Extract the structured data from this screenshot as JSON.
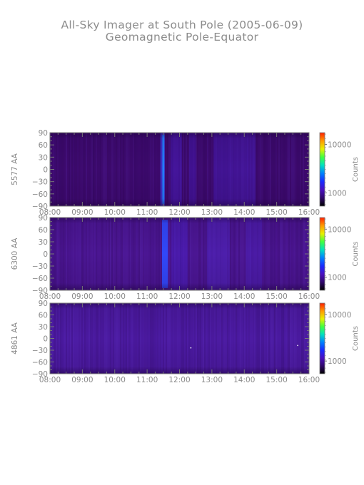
{
  "title_line1": "All-Sky Imager at South Pole (2005-06-09)",
  "title_line2": "Geomagnetic Pole-Equator",
  "chart_data": [
    {
      "type": "heatmap",
      "ylabel": "5577 AA",
      "colorbar_label": "Counts",
      "colorbar_ticks": [
        "10000",
        "1000"
      ],
      "x_ticks": [
        "08:00",
        "09:00",
        "10:00",
        "11:00",
        "12:00",
        "13:00",
        "14:00",
        "15:00",
        "16:00"
      ],
      "y_ticks": [
        "90",
        "60",
        "30",
        "0",
        "−30",
        "−60",
        "−90"
      ],
      "xlim": [
        8,
        16
      ],
      "ylim": [
        -90,
        90
      ],
      "background_color": "#3d0a6e",
      "features": [
        {
          "t": 11.5,
          "width_h": 0.06,
          "color": "#00ccff",
          "kind": "burst"
        },
        {
          "t": 11.48,
          "width_h": 0.14,
          "color": "#3b4fff",
          "kind": "glow"
        },
        {
          "t": 11.9,
          "width_h": 0.35,
          "color": "#4a20c8",
          "kind": "band"
        },
        {
          "t": 12.4,
          "width_h": 0.2,
          "color": "#4a1dc0",
          "kind": "band"
        },
        {
          "t": 13.7,
          "width_h": 1.3,
          "color": "#4a22c4",
          "kind": "band"
        }
      ]
    },
    {
      "type": "heatmap",
      "ylabel": "6300 AA",
      "colorbar_label": "Counts",
      "colorbar_ticks": [
        "10000",
        "1000"
      ],
      "x_ticks": [
        "08:00",
        "09:00",
        "10:00",
        "11:00",
        "12:00",
        "13:00",
        "14:00",
        "15:00",
        "16:00"
      ],
      "y_ticks": [
        "90",
        "60",
        "30",
        "0",
        "−30",
        "−60",
        "−90"
      ],
      "xlim": [
        8,
        16
      ],
      "ylim": [
        -90,
        90
      ],
      "background_color": "#4a1590",
      "features": [
        {
          "t": 11.55,
          "width_h": 0.18,
          "color": "#2f4bff",
          "kind": "burst"
        },
        {
          "t": 12.0,
          "width_h": 0.5,
          "color": "#4b22cc",
          "kind": "band"
        },
        {
          "t": 13.2,
          "width_h": 0.7,
          "color": "#5028c8",
          "kind": "band"
        },
        {
          "t": 14.3,
          "width_h": 0.5,
          "color": "#4e24c0",
          "kind": "band"
        }
      ]
    },
    {
      "type": "heatmap",
      "ylabel": "4861 AA",
      "colorbar_label": "Counts",
      "colorbar_ticks": [
        "10000",
        "1000"
      ],
      "x_ticks": [
        "08:00",
        "09:00",
        "10:00",
        "11:00",
        "12:00",
        "13:00",
        "14:00",
        "15:00",
        "16:00"
      ],
      "y_ticks": [
        "90",
        "60",
        "30",
        "0",
        "−30",
        "−60",
        "−90"
      ],
      "xlim": [
        8,
        16
      ],
      "ylim": [
        -90,
        90
      ],
      "background_color": "#4b1aa0",
      "features": [
        {
          "t": 12.35,
          "width_h": 0.02,
          "color": "#ffffff",
          "kind": "dot",
          "y": -24
        },
        {
          "t": 15.65,
          "width_h": 0.02,
          "color": "#ffffff",
          "kind": "dot",
          "y": -18
        }
      ]
    }
  ],
  "colorbar_colors": [
    "#ff2000",
    "#ff9a00",
    "#e8f000",
    "#40ff40",
    "#00e0c0",
    "#0080ff",
    "#1a2aff",
    "#4a10c0",
    "#30086a",
    "#000000"
  ]
}
